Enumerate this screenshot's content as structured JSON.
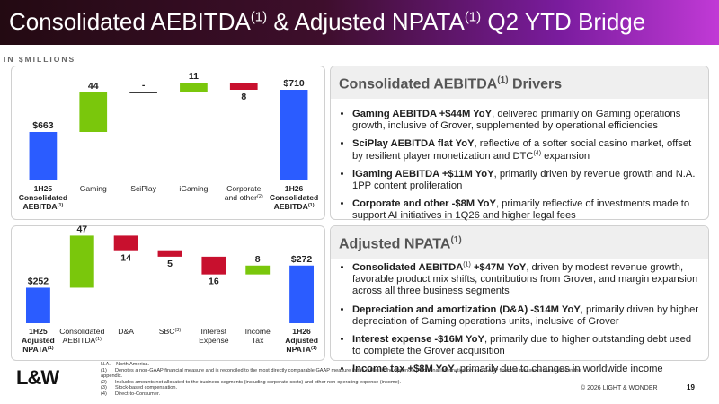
{
  "header": {
    "title": [
      {
        "t": "Consolidated AEBITDA"
      },
      {
        "sup": "(1)"
      },
      {
        "t": " & Adjusted NPATA"
      },
      {
        "sup": "(1)"
      },
      {
        "t": " Q2 YTD Bridge"
      }
    ]
  },
  "unit_label": "IN $MILLIONS",
  "chart_data": [
    {
      "type": "waterfall",
      "categories": [
        {
          "lines": [
            "1H25",
            "Consolidated",
            "AEBITDA"
          ],
          "note": "(1)"
        },
        {
          "lines": [
            "Gaming"
          ]
        },
        {
          "lines": [
            "SciPlay"
          ]
        },
        {
          "lines": [
            "iGaming"
          ]
        },
        {
          "lines": [
            "Corporate",
            "and other"
          ],
          "note": "(2)"
        },
        {
          "lines": [
            "1H26",
            "Consolidated",
            "AEBITDA"
          ],
          "note": "(1)"
        }
      ],
      "values": [
        663,
        44,
        0,
        11,
        -8,
        710
      ],
      "value_labels": [
        "$663",
        "44",
        "-",
        "11",
        "8",
        "$710"
      ],
      "kinds": [
        "total",
        "delta",
        "delta",
        "delta",
        "delta",
        "total"
      ],
      "colors": {
        "total": "#2b5cff",
        "increase": "#7ac70c",
        "decrease": "#c8102e",
        "zero": "#3a3a3a"
      },
      "ylim": [
        609,
        720
      ]
    },
    {
      "type": "waterfall",
      "categories": [
        {
          "lines": [
            "1H25",
            "Adjusted",
            "NPATA"
          ],
          "note": "(1)"
        },
        {
          "lines": [
            "Consolidated",
            "AEBITDA"
          ],
          "note": "(1)"
        },
        {
          "lines": [
            "D&A"
          ]
        },
        {
          "lines": [
            "SBC"
          ],
          "note": "(3)"
        },
        {
          "lines": [
            "Interest",
            "Expense"
          ]
        },
        {
          "lines": [
            "Income",
            "Tax"
          ]
        },
        {
          "lines": [
            "1H26",
            "Adjusted",
            "NPATA"
          ],
          "note": "(1)"
        }
      ],
      "values": [
        252,
        47,
        -14,
        -5,
        -16,
        8,
        272
      ],
      "value_labels": [
        "$252",
        "47",
        "14",
        "5",
        "16",
        "8",
        "$272"
      ],
      "kinds": [
        "total",
        "delta",
        "delta",
        "delta",
        "delta",
        "delta",
        "total"
      ],
      "colors": {
        "total": "#2b5cff",
        "increase": "#7ac70c",
        "decrease": "#c8102e",
        "zero": "#3a3a3a"
      },
      "ylim": [
        220,
        305
      ]
    }
  ],
  "panels": [
    {
      "title": [
        {
          "t": "Consolidated AEBITDA"
        },
        {
          "sup": "(1)"
        },
        {
          "t": " Drivers"
        }
      ],
      "bullets": [
        [
          {
            "b": "Gaming AEBITDA +$44M YoY"
          },
          {
            "t": ", delivered primarily on Gaming operations growth, inclusive of Grover, supplemented by operational efficiencies"
          }
        ],
        [
          {
            "b": "SciPlay AEBITDA flat YoY"
          },
          {
            "t": ", reflective of a softer social casino market, offset by resilient player monetization and DTC"
          },
          {
            "sup": "(4)"
          },
          {
            "t": " expansion"
          }
        ],
        [
          {
            "b": "iGaming AEBITDA +$11M YoY"
          },
          {
            "t": ", primarily driven by revenue growth and N.A. 1PP content proliferation"
          }
        ],
        [
          {
            "b": "Corporate and other -$8M YoY"
          },
          {
            "t": ", primarily reflective of investments made to support AI initiatives in 1Q26 and higher legal fees"
          }
        ]
      ]
    },
    {
      "title": [
        {
          "t": "Adjusted NPATA"
        },
        {
          "sup": "(1)"
        }
      ],
      "bullets": [
        [
          {
            "b": "Consolidated AEBITDA"
          },
          {
            "sup": "(1)"
          },
          {
            "b": " +$47M YoY"
          },
          {
            "t": ", driven by modest revenue growth, favorable product mix shifts, contributions from Grover, and margin expansion across all three business segments"
          }
        ],
        [
          {
            "b": "Depreciation and amortization (D&A) -$14M YoY"
          },
          {
            "t": ", primarily driven by higher depreciation of Gaming operations units, inclusive of Grover"
          }
        ],
        [
          {
            "b": "Interest expense -$16M YoY"
          },
          {
            "t": ", primarily due to higher outstanding debt used to complete the Grover acquisition"
          }
        ],
        [
          {
            "b": "Income tax +$8M YoY"
          },
          {
            "t": ", primarily due to changes in worldwide income"
          }
        ]
      ]
    }
  ],
  "footer": {
    "first_note": "N.A. – North America.",
    "notes": [
      {
        "num": "(1)",
        "text": "Denotes a non-GAAP financial measure and is reconciled to the most directly comparable GAAP measure in the tables in the appendix. Additional information on non-GAAP financial measures is available in the appendix."
      },
      {
        "num": "(2)",
        "text": "Includes amounts not allocated to the business segments (including corporate costs) and other non-operating expense (income)."
      },
      {
        "num": "(3)",
        "text": "Stock-based compensation."
      },
      {
        "num": "(4)",
        "text": "Direct-to-Consumer."
      }
    ],
    "logo": "L&W",
    "copyright": "© 2026 LIGHT & WONDER",
    "page": "19"
  }
}
